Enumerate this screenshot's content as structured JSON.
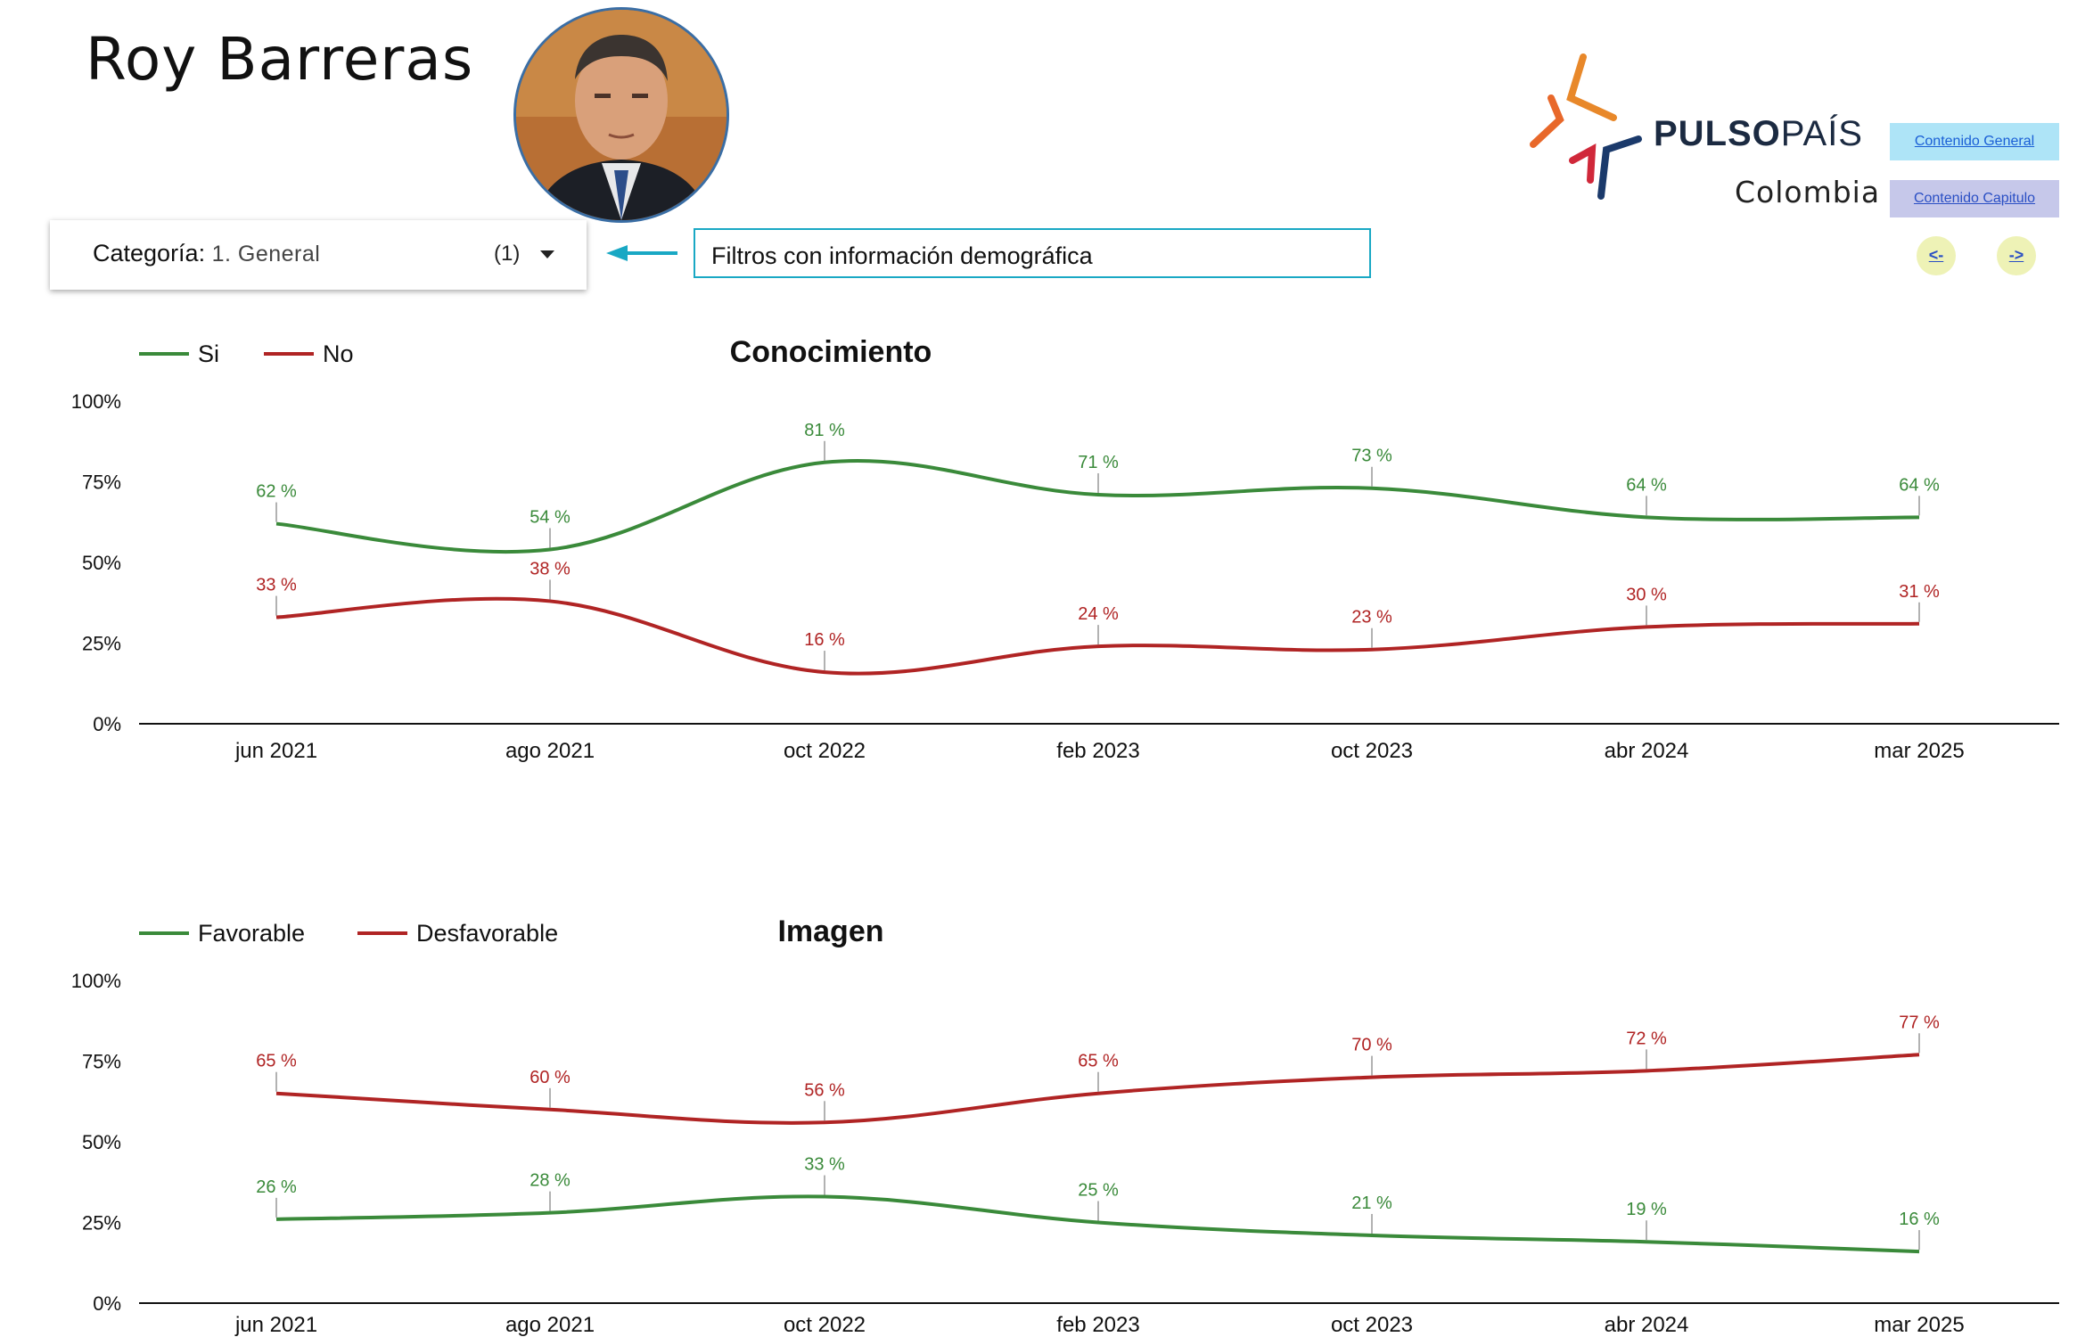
{
  "header": {
    "title": "Roy Barreras",
    "brand_bold": "PULSO",
    "brand_light": "PAÍS",
    "country": "Colombia",
    "links": {
      "general": "Contenido General",
      "capitulo": "Contenido Capitulo"
    },
    "nav": {
      "prev": "<-",
      "next": "->"
    }
  },
  "filter": {
    "label": "Categoría:",
    "value": "1. General",
    "count": "(1)"
  },
  "note": {
    "text": "Filtros con información demográfica"
  },
  "colors": {
    "green": "#3a8a3a",
    "red": "#b02424",
    "accent": "#19a8c4"
  },
  "chart_data": [
    {
      "type": "line",
      "title": "Conocimiento",
      "categories": [
        "jun 2021",
        "ago 2021",
        "oct 2022",
        "feb 2023",
        "oct 2023",
        "abr 2024",
        "mar 2025"
      ],
      "yticks": [
        "0%",
        "25%",
        "50%",
        "75%",
        "100%"
      ],
      "ylim": [
        0,
        100
      ],
      "legend_position": "top-left",
      "series": [
        {
          "name": "Si",
          "color": "#3a8a3a",
          "values": [
            62,
            54,
            81,
            71,
            73,
            64,
            64
          ],
          "labels": [
            "62 %",
            "54 %",
            "81 %",
            "71 %",
            "73 %",
            "64 %",
            "64 %"
          ]
        },
        {
          "name": "No",
          "color": "#b02424",
          "values": [
            33,
            38,
            16,
            24,
            23,
            30,
            31
          ],
          "labels": [
            "33 %",
            "38 %",
            "16 %",
            "24 %",
            "23 %",
            "30 %",
            "31 %"
          ]
        }
      ]
    },
    {
      "type": "line",
      "title": "Imagen",
      "categories": [
        "jun 2021",
        "ago 2021",
        "oct 2022",
        "feb 2023",
        "oct 2023",
        "abr 2024",
        "mar 2025"
      ],
      "yticks": [
        "0%",
        "25%",
        "50%",
        "75%",
        "100%"
      ],
      "ylim": [
        0,
        100
      ],
      "legend_position": "top-left",
      "series": [
        {
          "name": "Favorable",
          "color": "#3a8a3a",
          "values": [
            26,
            28,
            33,
            25,
            21,
            19,
            16
          ],
          "labels": [
            "26 %",
            "28 %",
            "33 %",
            "25 %",
            "21 %",
            "19 %",
            "16 %"
          ]
        },
        {
          "name": "Desfavorable",
          "color": "#b02424",
          "values": [
            65,
            60,
            56,
            65,
            70,
            72,
            77
          ],
          "labels": [
            "65 %",
            "60 %",
            "56 %",
            "65 %",
            "70 %",
            "72 %",
            "77 %"
          ]
        }
      ]
    }
  ]
}
